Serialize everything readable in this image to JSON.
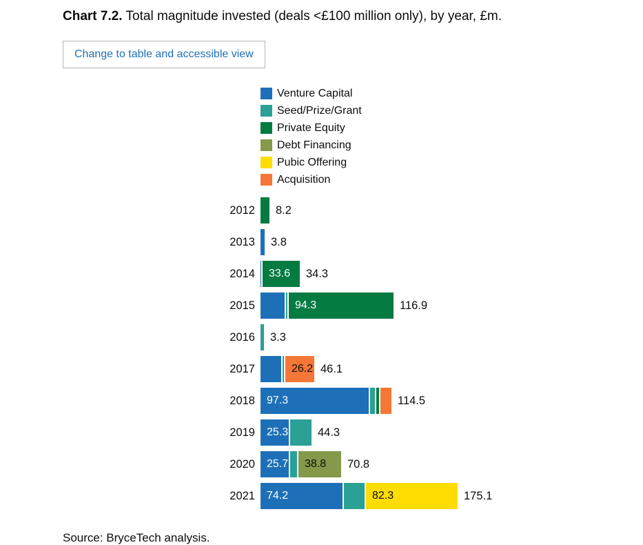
{
  "page": {
    "title_prefix": "Chart 7.2.",
    "title_rest": "Total magnitude invested (deals <£100 million only), by year, £m.",
    "view_toggle_label": "Change to table and accessible view",
    "source": "Source: BryceTech analysis."
  },
  "chart_data": {
    "type": "bar",
    "orientation": "horizontal",
    "stacked": true,
    "title": "Total magnitude invested (deals <£100 million only), by year, £m",
    "unit": "£m",
    "legend_position": "top",
    "axes_visible": false,
    "grid": false,
    "xlim": [
      0,
      180
    ],
    "categories": [
      "2012",
      "2013",
      "2014",
      "2015",
      "2016",
      "2017",
      "2018",
      "2019",
      "2020",
      "2021"
    ],
    "series": [
      {
        "name": "Venture Capital",
        "color": "#1d70b8",
        "label_color": "#ffffff",
        "values": [
          0,
          3.8,
          0.7,
          21.6,
          0,
          18.6,
          97.3,
          25.3,
          25.7,
          74.2
        ]
      },
      {
        "name": "Seed/Prize/Grant",
        "color": "#2ba094",
        "label_color": "#ffffff",
        "values": [
          0,
          0,
          0,
          1.0,
          3.3,
          1.3,
          4.5,
          19.0,
          6.3,
          18.6
        ]
      },
      {
        "name": "Private Equity",
        "color": "#047b41",
        "label_color": "#ffffff",
        "values": [
          8.2,
          0,
          33.6,
          94.3,
          0,
          0,
          2.7,
          0,
          0,
          0
        ]
      },
      {
        "name": "Debt Financing",
        "color": "#85994b",
        "label_color": "#0b0c0c",
        "values": [
          0,
          0,
          0,
          0,
          0,
          0,
          0,
          0,
          38.8,
          0
        ]
      },
      {
        "name": "Pubic Offering",
        "color": "#ffdd00",
        "label_color": "#0b0c0c",
        "values": [
          0,
          0,
          0,
          0,
          0,
          0,
          0,
          0,
          0,
          82.3
        ]
      },
      {
        "name": "Acquisition",
        "color": "#f47738",
        "label_color": "#0b0c0c",
        "values": [
          0,
          0,
          0,
          0,
          0,
          26.2,
          10.0,
          0,
          0,
          0
        ]
      }
    ],
    "totals": [
      8.2,
      3.8,
      34.3,
      116.9,
      3.3,
      46.1,
      114.5,
      44.3,
      70.8,
      175.1
    ],
    "segment_label_min": 25
  }
}
